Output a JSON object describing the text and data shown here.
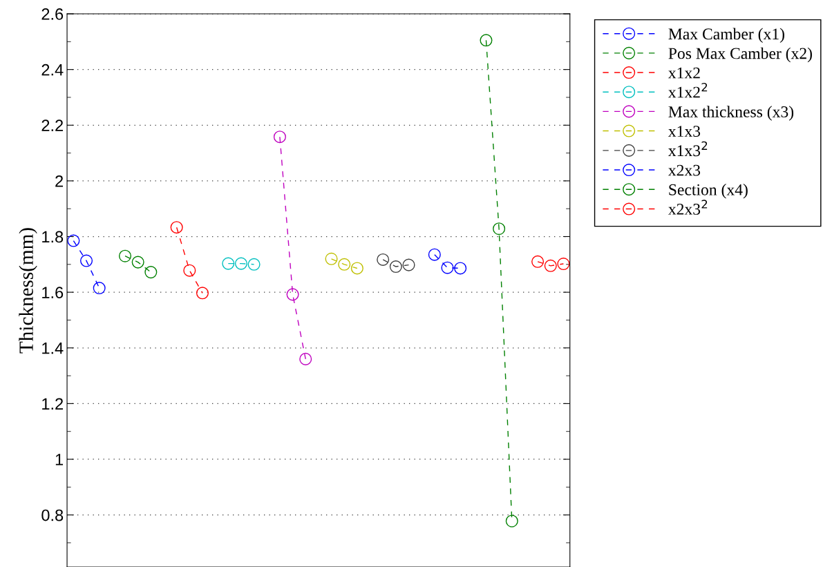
{
  "chart_data": {
    "type": "line",
    "ylabel": "Thickness(mm)",
    "categories": [
      null,
      null,
      null,
      null,
      null,
      null,
      null,
      null,
      null,
      null,
      null,
      null,
      null,
      null,
      null,
      null,
      null,
      null,
      null,
      null,
      null,
      null,
      null,
      null,
      null,
      null,
      null,
      null,
      null,
      null,
      null,
      null,
      null,
      null,
      null,
      null,
      null,
      null,
      null
    ],
    "ylim": [
      0.613,
      2.6
    ],
    "yticks": [
      0.8,
      1,
      1.2,
      1.4,
      1.6,
      1.8,
      2,
      2.2,
      2.4,
      2.6
    ],
    "tick_labels": "y",
    "grid": "y",
    "legend": "right",
    "marker": "circle",
    "line_style": "dashed",
    "series": [
      {
        "name": "Max Camber (x1)",
        "color": "#0000ff",
        "values": [
          1.785,
          1.713,
          1.615,
          null,
          null,
          null,
          null,
          null,
          null,
          null,
          null,
          null,
          null,
          null,
          null,
          null,
          null,
          null,
          null,
          null,
          null,
          null,
          null,
          null,
          null,
          null,
          null,
          null,
          null,
          null,
          null,
          null,
          null,
          null,
          null,
          null,
          null,
          null,
          null
        ]
      },
      {
        "name": "Pos Max Camber (x2)",
        "color": "#008000",
        "values": [
          null,
          null,
          null,
          null,
          1.73,
          1.708,
          1.672,
          null,
          null,
          null,
          null,
          null,
          null,
          null,
          null,
          null,
          null,
          null,
          null,
          null,
          null,
          null,
          null,
          null,
          null,
          null,
          null,
          null,
          null,
          null,
          null,
          null,
          null,
          null,
          null,
          null,
          null,
          null,
          null
        ]
      },
      {
        "name": "x1x2",
        "color": "#ff0000",
        "values": [
          null,
          null,
          null,
          null,
          null,
          null,
          null,
          null,
          1.833,
          1.678,
          1.597,
          null,
          null,
          null,
          null,
          null,
          null,
          null,
          null,
          null,
          null,
          null,
          null,
          null,
          null,
          null,
          null,
          null,
          null,
          null,
          null,
          null,
          null,
          null,
          null,
          null,
          null,
          null,
          null
        ]
      },
      {
        "name": "x1x2$^{2}$",
        "color": "#00bfbf",
        "values": [
          null,
          null,
          null,
          null,
          null,
          null,
          null,
          null,
          null,
          null,
          null,
          null,
          1.703,
          1.703,
          1.7,
          null,
          null,
          null,
          null,
          null,
          null,
          null,
          null,
          null,
          null,
          null,
          null,
          null,
          null,
          null,
          null,
          null,
          null,
          null,
          null,
          null,
          null,
          null,
          null
        ]
      },
      {
        "name": "Max thickness (x3)",
        "color": "#bf00bf",
        "values": [
          null,
          null,
          null,
          null,
          null,
          null,
          null,
          null,
          null,
          null,
          null,
          null,
          null,
          null,
          null,
          null,
          2.158,
          1.592,
          1.36,
          null,
          null,
          null,
          null,
          null,
          null,
          null,
          null,
          null,
          null,
          null,
          null,
          null,
          null,
          null,
          null,
          null,
          null,
          null,
          null
        ]
      },
      {
        "name": "x1x3",
        "color": "#bfbf00",
        "values": [
          null,
          null,
          null,
          null,
          null,
          null,
          null,
          null,
          null,
          null,
          null,
          null,
          null,
          null,
          null,
          null,
          null,
          null,
          null,
          null,
          1.72,
          1.7,
          1.686,
          null,
          null,
          null,
          null,
          null,
          null,
          null,
          null,
          null,
          null,
          null,
          null,
          null,
          null,
          null,
          null
        ]
      },
      {
        "name": "x1x3$^{2}$",
        "color": "#404040",
        "values": [
          null,
          null,
          null,
          null,
          null,
          null,
          null,
          null,
          null,
          null,
          null,
          null,
          null,
          null,
          null,
          null,
          null,
          null,
          null,
          null,
          null,
          null,
          null,
          null,
          1.717,
          1.692,
          1.698,
          null,
          null,
          null,
          null,
          null,
          null,
          null,
          null,
          null,
          null,
          null,
          null
        ]
      },
      {
        "name": "x2x3",
        "color": "#0000ff",
        "values": [
          null,
          null,
          null,
          null,
          null,
          null,
          null,
          null,
          null,
          null,
          null,
          null,
          null,
          null,
          null,
          null,
          null,
          null,
          null,
          null,
          null,
          null,
          null,
          null,
          null,
          null,
          null,
          null,
          1.735,
          1.688,
          1.686,
          null,
          null,
          null,
          null,
          null,
          null,
          null,
          null
        ]
      },
      {
        "name": "Section (x4)",
        "color": "#008000",
        "values": [
          null,
          null,
          null,
          null,
          null,
          null,
          null,
          null,
          null,
          null,
          null,
          null,
          null,
          null,
          null,
          null,
          null,
          null,
          null,
          null,
          null,
          null,
          null,
          null,
          null,
          null,
          null,
          null,
          null,
          null,
          null,
          null,
          2.505,
          1.828,
          0.778,
          null,
          null,
          null,
          null
        ]
      },
      {
        "name": "x2x3$^{2}$",
        "color": "#ff0000",
        "values": [
          null,
          null,
          null,
          null,
          null,
          null,
          null,
          null,
          null,
          null,
          null,
          null,
          null,
          null,
          null,
          null,
          null,
          null,
          null,
          null,
          null,
          null,
          null,
          null,
          null,
          null,
          null,
          null,
          null,
          null,
          null,
          null,
          null,
          null,
          null,
          null,
          1.71,
          1.695,
          1.702
        ]
      }
    ]
  }
}
